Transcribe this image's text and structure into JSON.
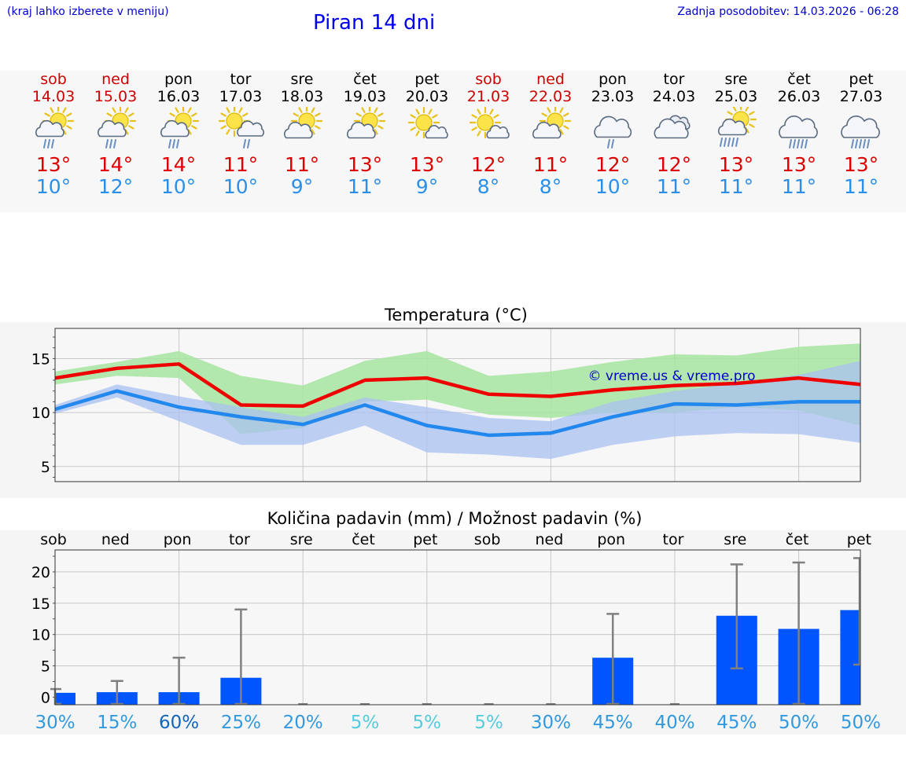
{
  "header": {
    "hint": "(kraj lahko izberete v meniju)",
    "title": "Piran 14 dni",
    "updated": "Zadnja posodobitev: 14.03.2026 - 06:28"
  },
  "days": [
    {
      "name": "sob",
      "date": "14.03",
      "weekend": true,
      "icon": "partly-sunny-rain-icon",
      "tmax": "13°",
      "tmin": "10°"
    },
    {
      "name": "ned",
      "date": "15.03",
      "weekend": true,
      "icon": "partly-sunny-rain-icon",
      "tmax": "14°",
      "tmin": "12°"
    },
    {
      "name": "pon",
      "date": "16.03",
      "weekend": false,
      "icon": "partly-sunny-rain-icon",
      "tmax": "14°",
      "tmin": "10°"
    },
    {
      "name": "tor",
      "date": "17.03",
      "weekend": false,
      "icon": "sun-cloud-rain-icon",
      "tmax": "11°",
      "tmin": "10°"
    },
    {
      "name": "sre",
      "date": "18.03",
      "weekend": false,
      "icon": "partly-cloudy-icon",
      "tmax": "11°",
      "tmin": "9°"
    },
    {
      "name": "čet",
      "date": "19.03",
      "weekend": false,
      "icon": "partly-cloudy-icon",
      "tmax": "13°",
      "tmin": "11°"
    },
    {
      "name": "pet",
      "date": "20.03",
      "weekend": false,
      "icon": "mostly-sunny-icon",
      "tmax": "13°",
      "tmin": "9°"
    },
    {
      "name": "sob",
      "date": "21.03",
      "weekend": true,
      "icon": "mostly-sunny-icon",
      "tmax": "12°",
      "tmin": "8°"
    },
    {
      "name": "ned",
      "date": "22.03",
      "weekend": true,
      "icon": "partly-cloudy-icon",
      "tmax": "11°",
      "tmin": "8°"
    },
    {
      "name": "pon",
      "date": "23.03",
      "weekend": false,
      "icon": "cloud-rain-icon",
      "tmax": "12°",
      "tmin": "10°"
    },
    {
      "name": "tor",
      "date": "24.03",
      "weekend": false,
      "icon": "cloudy-icon",
      "tmax": "12°",
      "tmin": "11°"
    },
    {
      "name": "sre",
      "date": "25.03",
      "weekend": false,
      "icon": "partly-sunny-heavy-rain-icon",
      "tmax": "13°",
      "tmin": "11°"
    },
    {
      "name": "čet",
      "date": "26.03",
      "weekend": false,
      "icon": "cloud-heavy-rain-icon",
      "tmax": "13°",
      "tmin": "11°"
    },
    {
      "name": "pet",
      "date": "27.03",
      "weekend": false,
      "icon": "cloud-heavy-rain-icon",
      "tmax": "13°",
      "tmin": "11°"
    }
  ],
  "colors": {
    "max_line": "#ee0000",
    "min_line": "#2288ee",
    "max_band": "#a6e5a0",
    "min_band": "#aac0f2",
    "precip_bar": "#0055ff",
    "error_bar": "#808080",
    "watermark": "#0000cc"
  },
  "chart_data": [
    {
      "type": "line",
      "title": "Temperatura (°C)",
      "watermark": "© vreme.us & vreme.pro",
      "xlabel": "",
      "ylabel": "",
      "ylim": [
        3.6,
        17.8
      ],
      "yticks": [
        5,
        10,
        15
      ],
      "x": [
        0,
        1,
        2,
        3,
        4,
        5,
        6,
        7,
        8,
        9,
        10,
        11,
        12,
        13
      ],
      "series": [
        {
          "name": "max",
          "values": [
            13.2,
            14.1,
            14.5,
            10.7,
            10.6,
            13.0,
            13.2,
            11.7,
            11.5,
            12.1,
            12.5,
            12.7,
            13.2,
            12.6
          ],
          "band_low": [
            12.6,
            13.4,
            13.2,
            8.0,
            8.6,
            11.0,
            11.2,
            9.8,
            9.5,
            10.0,
            10.0,
            10.5,
            10.2,
            8.8
          ],
          "band_high": [
            13.8,
            14.7,
            15.7,
            13.4,
            12.5,
            14.8,
            15.7,
            13.4,
            13.8,
            14.7,
            15.4,
            15.3,
            16.1,
            16.4
          ]
        },
        {
          "name": "min",
          "values": [
            10.3,
            12.0,
            10.5,
            9.6,
            8.9,
            10.7,
            8.8,
            7.9,
            8.1,
            9.6,
            10.8,
            10.7,
            11.0,
            11.0
          ],
          "band_low": [
            9.9,
            11.4,
            9.2,
            7.0,
            7.0,
            8.8,
            6.3,
            6.1,
            5.7,
            7.0,
            7.8,
            8.1,
            8.0,
            7.2
          ],
          "band_high": [
            10.7,
            12.6,
            11.5,
            10.5,
            9.6,
            11.4,
            10.5,
            9.5,
            9.2,
            11.0,
            12.0,
            12.7,
            13.5,
            14.8
          ]
        }
      ]
    },
    {
      "type": "bar",
      "title": "Količina padavin (mm) / Možnost padavin (%)",
      "xlabel": "",
      "ylabel": "",
      "ylim": [
        -1.2,
        23.5
      ],
      "yticks": [
        0,
        5,
        10,
        15,
        20
      ],
      "categories": [
        "sob",
        "ned",
        "pon",
        "tor",
        "sre",
        "čet",
        "pet",
        "sob",
        "ned",
        "pon",
        "tor",
        "sre",
        "čet",
        "pet"
      ],
      "values": [
        0.7,
        0.8,
        0.8,
        3.1,
        0,
        0,
        0,
        0,
        0,
        6.3,
        0,
        13.0,
        10.9,
        13.9
      ],
      "error_low": [
        0,
        0,
        0,
        0,
        0,
        0,
        0,
        0,
        0,
        0,
        0,
        4.6,
        0,
        5.2
      ],
      "error_high": [
        1.3,
        2.6,
        6.3,
        14.0,
        0,
        0,
        0,
        0,
        0,
        13.3,
        0,
        21.2,
        21.5,
        22.2
      ],
      "probability": [
        "30%",
        "15%",
        "60%",
        "25%",
        "20%",
        "5%",
        "5%",
        "5%",
        "30%",
        "45%",
        "40%",
        "45%",
        "50%",
        "50%"
      ],
      "probability_colors": [
        "#3399dd",
        "#3399dd",
        "#1166bb",
        "#3399dd",
        "#3399dd",
        "#55ccdd",
        "#55ccdd",
        "#55ccdd",
        "#3399dd",
        "#3399dd",
        "#3399dd",
        "#3399dd",
        "#3399dd",
        "#3399dd"
      ]
    }
  ]
}
